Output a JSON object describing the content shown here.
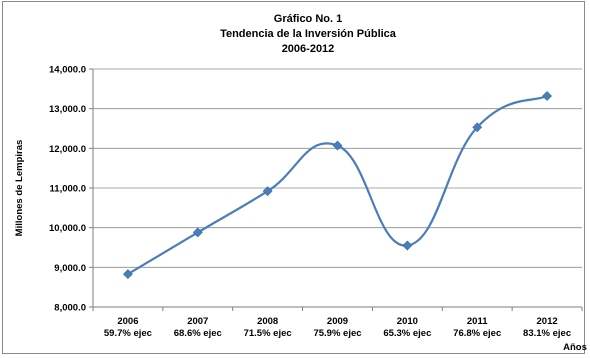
{
  "chart_data": {
    "type": "line",
    "title": [
      "Gráfico No. 1",
      "Tendencia de la Inversión Pública",
      "2006-2012"
    ],
    "xlabel": "Años",
    "ylabel": "Millones de Lempiras",
    "categories": [
      "2006",
      "2007",
      "2008",
      "2009",
      "2010",
      "2011",
      "2012"
    ],
    "subcategories": [
      "59.7% ejec",
      "68.6% ejec",
      "71.5% ejec",
      "75.9% ejec",
      "65.3% ejec",
      "76.8% ejec",
      "83.1% ejec"
    ],
    "values": [
      8830,
      9880,
      10920,
      12070,
      9550,
      12530,
      13320
    ],
    "ylim": [
      8000,
      14000
    ],
    "yticks": [
      8000,
      9000,
      10000,
      11000,
      12000,
      13000,
      14000
    ],
    "ytick_labels": [
      "8,000.0",
      "9,000.0",
      "10,000.0",
      "11,000.0",
      "12,000.0",
      "13,000.0",
      "14,000.0"
    ],
    "grid": true,
    "smooth": true,
    "marker": "diamond",
    "colors": {
      "line": "#4a7ebb",
      "marker": "#4a7ebb",
      "grid": "#8c8c8c"
    }
  }
}
